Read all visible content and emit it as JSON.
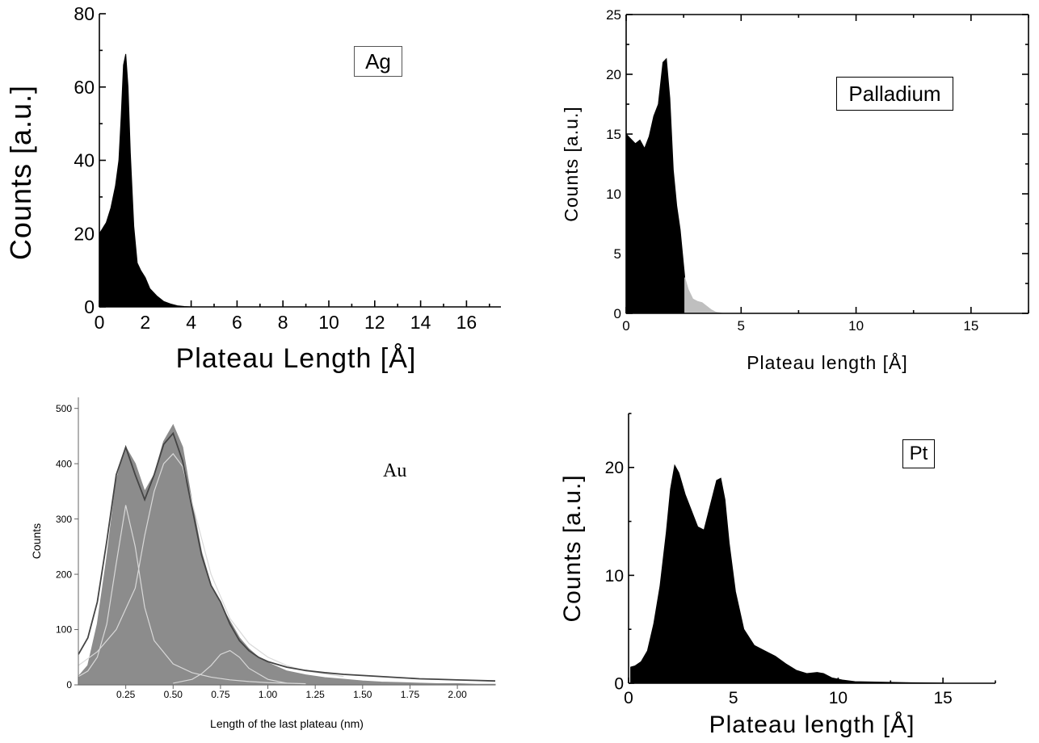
{
  "chart_data": [
    {
      "id": "ag",
      "type": "area",
      "annotation": "Ag",
      "xlabel": "Plateau Length [Å]",
      "ylabel": "Counts [a.u.]",
      "xlim": [
        0,
        17.5
      ],
      "ylim": [
        0,
        80
      ],
      "xticks": [
        0,
        2,
        4,
        6,
        8,
        10,
        12,
        14,
        16
      ],
      "xtick_labels": [
        "0",
        "2",
        "4",
        "6",
        "8",
        "10",
        "12",
        "14",
        "16"
      ],
      "yticks": [
        0,
        20,
        40,
        60,
        80
      ],
      "ytick_labels": [
        "0",
        "20",
        "40",
        "60",
        "80"
      ],
      "series": [
        {
          "color": "#000000",
          "x": [
            0,
            0.3,
            0.5,
            0.7,
            0.85,
            0.95,
            1.05,
            1.15,
            1.25,
            1.35,
            1.5,
            1.65,
            1.8,
            2.0,
            2.2,
            2.5,
            2.8,
            3.1,
            3.4,
            3.7,
            4.0
          ],
          "y": [
            20,
            23,
            27,
            33,
            40,
            52,
            66,
            69,
            60,
            42,
            22,
            12,
            10,
            8,
            5,
            3,
            1.5,
            0.8,
            0.3,
            0.1,
            0
          ]
        }
      ]
    },
    {
      "id": "palladium",
      "type": "area",
      "annotation": "Palladium",
      "xlabel": "Plateau length [Å]",
      "ylabel": "Counts [a.u.]",
      "xlim": [
        0,
        17.5
      ],
      "ylim": [
        0,
        25
      ],
      "xticks": [
        0,
        5,
        10,
        15
      ],
      "xtick_labels": [
        "0",
        "5",
        "10",
        "15"
      ],
      "yticks": [
        0,
        5,
        10,
        15,
        20,
        25
      ],
      "ytick_labels": [
        "0",
        "5",
        "10",
        "15",
        "20",
        "25"
      ],
      "series": [
        {
          "color": "#000000",
          "x": [
            0,
            0.2,
            0.4,
            0.6,
            0.8,
            1.0,
            1.2,
            1.4,
            1.6,
            1.75,
            1.9,
            2.05,
            2.2,
            2.35,
            2.5,
            2.55
          ],
          "y": [
            15,
            14.6,
            14.2,
            14.5,
            13.8,
            14.8,
            16.5,
            17.5,
            21,
            21.3,
            18,
            12,
            9,
            7,
            4,
            3
          ]
        },
        {
          "color": "#bfbfbf",
          "x": [
            2.55,
            2.7,
            2.9,
            3.1,
            3.3,
            3.5,
            3.7,
            3.9,
            4.2
          ],
          "y": [
            3,
            2,
            1.2,
            1.0,
            0.9,
            0.6,
            0.3,
            0.1,
            0
          ]
        }
      ]
    },
    {
      "id": "au",
      "type": "histogram",
      "annotation": "Au",
      "xlabel": "Length of the last plateau (nm)",
      "ylabel": "Counts",
      "xlim": [
        0,
        2.2
      ],
      "ylim": [
        0,
        520
      ],
      "xticks": [
        0.25,
        0.5,
        0.75,
        1.0,
        1.25,
        1.5,
        1.75,
        2.0
      ],
      "xtick_labels": [
        "0.25",
        "0.50",
        "0.75",
        "1.00",
        "1.25",
        "1.50",
        "1.75",
        "2.00"
      ],
      "yticks": [
        0,
        100,
        200,
        300,
        400,
        500
      ],
      "ytick_labels": [
        "0",
        "100",
        "200",
        "300",
        "400",
        "500"
      ],
      "histogram_color": "#8c8c8c",
      "fit_color": "#444444",
      "component_color": "#d9d9d9",
      "histogram": {
        "x": [
          0,
          0.05,
          0.1,
          0.15,
          0.2,
          0.25,
          0.3,
          0.35,
          0.4,
          0.45,
          0.5,
          0.55,
          0.6,
          0.65,
          0.7,
          0.75,
          0.8,
          0.85,
          0.9,
          0.95,
          1.0,
          1.1,
          1.2,
          1.3,
          1.4,
          1.5,
          1.6,
          1.7,
          1.8,
          1.9,
          2.0,
          2.1,
          2.2
        ],
        "y": [
          15,
          35,
          110,
          230,
          370,
          430,
          400,
          350,
          380,
          440,
          470,
          430,
          330,
          240,
          180,
          145,
          115,
          85,
          65,
          50,
          40,
          25,
          18,
          13,
          10,
          7,
          5,
          4,
          3,
          2,
          2,
          1,
          1
        ]
      },
      "fit": {
        "x": [
          0,
          0.05,
          0.1,
          0.15,
          0.2,
          0.25,
          0.3,
          0.35,
          0.4,
          0.45,
          0.5,
          0.55,
          0.6,
          0.65,
          0.7,
          0.75,
          0.8,
          0.85,
          0.9,
          0.95,
          1.0,
          1.1,
          1.2,
          1.3,
          1.4,
          1.5,
          1.6,
          1.7,
          1.8,
          1.9,
          2.0,
          2.1,
          2.2
        ],
        "y": [
          55,
          85,
          150,
          260,
          380,
          430,
          380,
          335,
          380,
          435,
          455,
          405,
          320,
          235,
          180,
          150,
          110,
          80,
          62,
          50,
          42,
          32,
          26,
          22,
          19,
          17,
          15,
          13,
          11,
          10,
          9,
          8,
          7
        ]
      },
      "components": [
        {
          "x": [
            0,
            0.05,
            0.1,
            0.15,
            0.2,
            0.25,
            0.3,
            0.35,
            0.4,
            0.5,
            0.6,
            0.7,
            0.8,
            0.9,
            1.0,
            1.2
          ],
          "y": [
            15,
            25,
            50,
            110,
            220,
            325,
            250,
            140,
            80,
            38,
            22,
            14,
            9,
            6,
            4,
            2
          ]
        },
        {
          "x": [
            0,
            0.1,
            0.2,
            0.3,
            0.35,
            0.4,
            0.45,
            0.5,
            0.55,
            0.6,
            0.7,
            0.8,
            0.9,
            1.0,
            1.1,
            1.2,
            1.4
          ],
          "y": [
            35,
            60,
            100,
            175,
            270,
            350,
            400,
            418,
            395,
            330,
            200,
            120,
            75,
            50,
            35,
            25,
            15
          ]
        },
        {
          "x": [
            0.5,
            0.6,
            0.65,
            0.7,
            0.75,
            0.8,
            0.85,
            0.9,
            1.0,
            1.1
          ],
          "y": [
            3,
            10,
            20,
            35,
            55,
            62,
            50,
            30,
            10,
            3
          ]
        }
      ]
    },
    {
      "id": "pt",
      "type": "area",
      "annotation": "Pt",
      "xlabel": "Plateau length [Å]",
      "ylabel": "Counts [a.u.]",
      "xlim": [
        0,
        17.5
      ],
      "ylim": [
        0,
        25
      ],
      "xticks": [
        0,
        5,
        10,
        15
      ],
      "xtick_labels": [
        "0",
        "5",
        "10",
        "15"
      ],
      "yticks": [
        0,
        10,
        20
      ],
      "ytick_labels": [
        "0",
        "10",
        "20"
      ],
      "series": [
        {
          "color": "#000000",
          "x": [
            0.1,
            0.3,
            0.6,
            0.9,
            1.2,
            1.5,
            1.8,
            2.0,
            2.2,
            2.4,
            2.7,
            3.0,
            3.3,
            3.6,
            3.9,
            4.2,
            4.4,
            4.6,
            4.8,
            5.1,
            5.5,
            6.0,
            6.5,
            7.0,
            7.5,
            8.0,
            8.5,
            9.0,
            9.3,
            9.7,
            10.2,
            10.8,
            12.0,
            13.5,
            15.0
          ],
          "y": [
            1.5,
            1.6,
            2.0,
            3.0,
            5.5,
            9.0,
            14.0,
            18.0,
            20.2,
            19.5,
            17.5,
            16.0,
            14.5,
            14.2,
            16.5,
            18.8,
            19.0,
            17.0,
            13.0,
            8.5,
            5.0,
            3.5,
            3.0,
            2.5,
            1.8,
            1.2,
            0.9,
            1.0,
            0.9,
            0.5,
            0.3,
            0.15,
            0.1,
            0.05,
            0.02
          ]
        }
      ]
    }
  ]
}
